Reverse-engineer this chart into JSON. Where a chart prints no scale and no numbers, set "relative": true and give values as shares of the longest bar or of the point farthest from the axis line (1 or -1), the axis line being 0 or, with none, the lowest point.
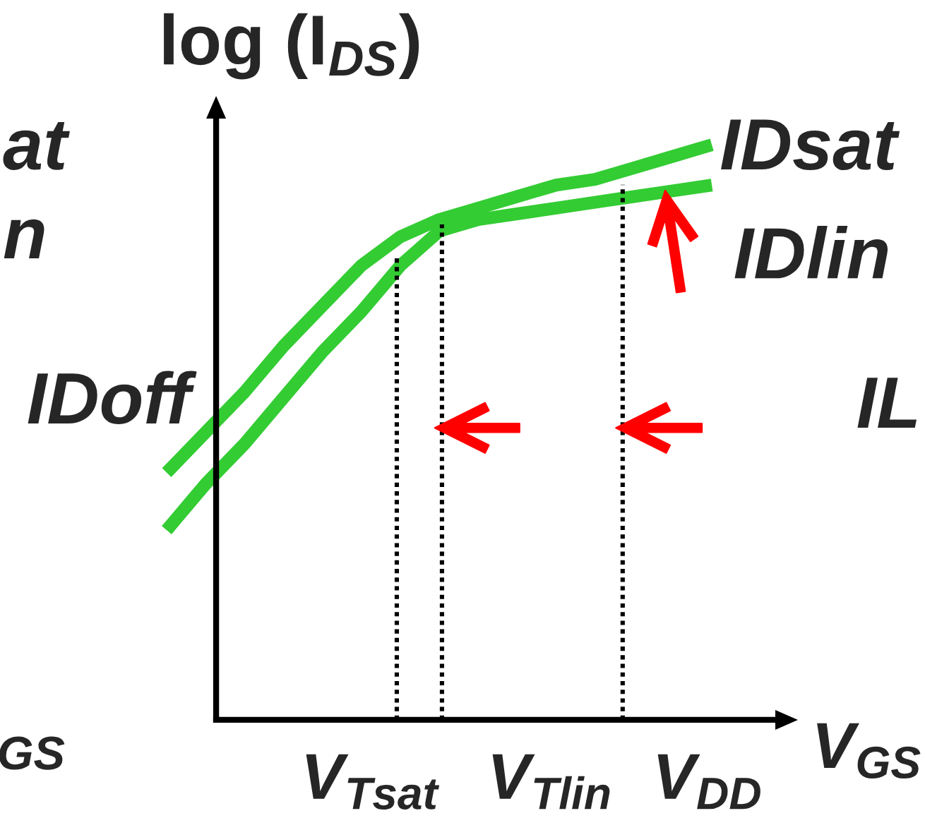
{
  "chart_data": {
    "type": "line",
    "relative": true,
    "ylabel": "log (I$_{DS}$)",
    "xlabel": "V$_{GS}$",
    "categories": [
      null,
      null,
      null,
      null,
      null,
      null,
      null,
      null,
      null,
      null,
      null,
      null,
      null,
      null,
      null
    ],
    "series": [
      {
        "name": "IDsat",
        "color": "#33cc33",
        "values": [
          0.43,
          0.5,
          0.57,
          0.65,
          0.72,
          0.79,
          0.84,
          0.87,
          0.89,
          0.91,
          0.93,
          0.94,
          0.96,
          0.98,
          1
        ]
      },
      {
        "name": "IDlin",
        "color": "#33cc33",
        "values": [
          0.33,
          0.41,
          0.48,
          0.56,
          0.64,
          0.71,
          0.79,
          0.85,
          0.87,
          0.88,
          0.89,
          0.9,
          0.91,
          0.92,
          0.93
        ]
      }
    ],
    "annotations": [
      "at",
      "n",
      "IDoff",
      "GS",
      "V$_{Tsat}$",
      "V$_{Tlin}$",
      "V$_{DD}$",
      "IL"
    ]
  }
}
